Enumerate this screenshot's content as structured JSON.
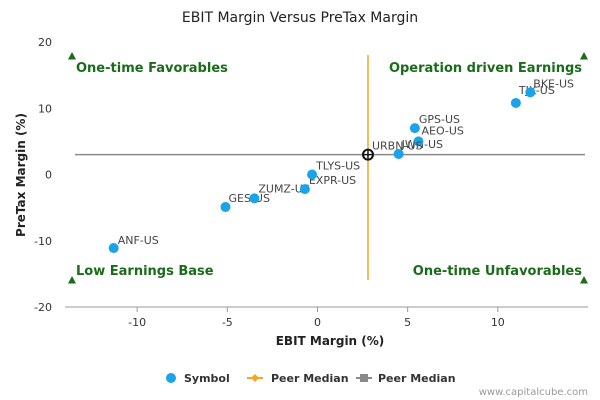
{
  "chart_data": {
    "type": "scatter",
    "title": "EBIT Margin Versus PreTax Margin",
    "xlabel": "EBIT Margin (%)",
    "ylabel": "PreTax Margin (%)",
    "xlim": [
      -14,
      15
    ],
    "ylim": [
      -20,
      20
    ],
    "xticks": [
      -10,
      -5,
      0,
      5,
      10
    ],
    "yticks": [
      20,
      10,
      0,
      -10,
      -20
    ],
    "grid": false,
    "series": [
      {
        "name": "Symbol",
        "color": "#1aa3e8",
        "points": [
          {
            "label": "BKE-US",
            "x": 11.8,
            "y": 12.4
          },
          {
            "label": "TJX-US",
            "x": 11.0,
            "y": 10.8
          },
          {
            "label": "GPS-US",
            "x": 5.4,
            "y": 7.0
          },
          {
            "label": "AEO-US",
            "x": 5.6,
            "y": 5.0
          },
          {
            "label": "JWN-US",
            "x": 4.5,
            "y": 3.1
          },
          {
            "label": "URBN-US",
            "x": 2.8,
            "y": 3.0
          },
          {
            "label": "TLYS-US",
            "x": -0.3,
            "y": 0.0
          },
          {
            "label": "EXPR-US",
            "x": -0.7,
            "y": -2.2
          },
          {
            "label": "ZUMZ-US",
            "x": -3.5,
            "y": -3.6
          },
          {
            "label": "GES-US",
            "x": -5.1,
            "y": -4.9
          },
          {
            "label": "ANF-US",
            "x": -11.3,
            "y": -11.1
          }
        ]
      }
    ],
    "peer_median": {
      "x": 2.8,
      "y": 3.0
    },
    "quadrants": {
      "top_left": "One-time Favorables",
      "top_right": "Operation driven Earnings",
      "bottom_left": "Low Earnings Base",
      "bottom_right": "One-time Unfavorables"
    },
    "legend": {
      "placement": "bottom",
      "items": [
        {
          "label": "Symbol",
          "color": "#1aa3e8",
          "marker": "circle"
        },
        {
          "label": "Peer Median",
          "color": "#f5a623",
          "marker": "diamond-line"
        },
        {
          "label": "Peer Median",
          "color": "#8a8a8a",
          "marker": "square-line"
        }
      ]
    },
    "colors": {
      "vertical_median": "#f5a623",
      "horizontal_median": "#8a8a8a",
      "quadrant_marker": "#1a6b1a"
    },
    "credit": "www.capitalcube.com"
  }
}
